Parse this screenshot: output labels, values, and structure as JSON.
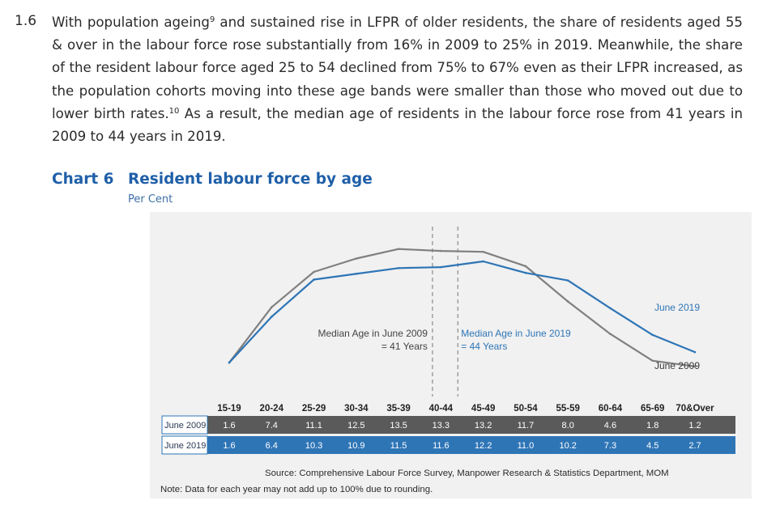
{
  "paragraph": {
    "number": "1.6",
    "text_1": "With population ageing",
    "footnote_1": "9",
    "text_2": " and sustained rise in LFPR of older residents, the share of residents aged 55 & over in the labour force rose substantially from 16% in 2009 to 25% in 2019. Meanwhile, the share of the resident labour force aged 25 to 54 declined from 75% to 67% even as their LFPR increased, as the population cohorts moving into these age bands were smaller than those who moved out due to lower birth rates.",
    "footnote_2": "10",
    "text_3": " As a result, the median age of residents in the labour force rose from 41 years in 2009 to 44 years in 2019."
  },
  "chart_heading": {
    "label": "Chart 6",
    "title": "Resident labour force by age",
    "unit": "Per Cent"
  },
  "chart_data": {
    "type": "line",
    "title": "Resident labour force by age",
    "ylabel": "Per Cent",
    "xlabel": "",
    "categories": [
      "15-19",
      "20-24",
      "25-29",
      "30-34",
      "35-39",
      "40-44",
      "45-49",
      "50-54",
      "55-59",
      "60-64",
      "65-69",
      "70&Over"
    ],
    "series": [
      {
        "name": "June 2009",
        "values": [
          1.6,
          7.4,
          11.1,
          12.5,
          13.5,
          13.3,
          13.2,
          11.7,
          8.0,
          4.6,
          1.8,
          1.2
        ],
        "color": "#808080"
      },
      {
        "name": "June 2019",
        "values": [
          1.6,
          6.4,
          10.3,
          10.9,
          11.5,
          11.6,
          12.2,
          11.0,
          10.2,
          7.3,
          4.5,
          2.7
        ],
        "color": "#2e75b6"
      }
    ],
    "ylim": [
      0,
      15
    ],
    "grid": false,
    "legend": "inline labels at right end of lines",
    "annotations": [
      {
        "name": "median_2009",
        "line1": "Median Age in June 2009",
        "line2": "= 41 Years",
        "at_age": 41
      },
      {
        "name": "median_2019",
        "line1": "Median Age in June 2019",
        "line2": "= 44 Years",
        "at_age": 44
      }
    ],
    "table_row_labels": [
      "June 2009",
      "June 2019"
    ],
    "table_row_colors": [
      "#5a5a5a",
      "#2e75b6"
    ]
  },
  "source_text": "Source: Comprehensive Labour Force Survey, Manpower Research & Statistics Department, MOM",
  "note_text": "Note: Data for each year may not add up to 100% due to rounding."
}
